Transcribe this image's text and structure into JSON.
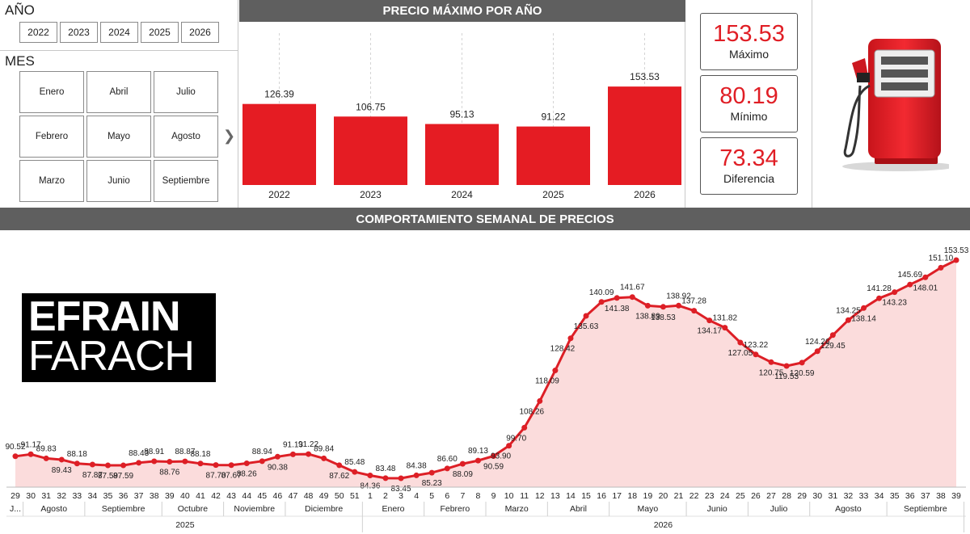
{
  "filters": {
    "year_title": "AÑO",
    "years": [
      "2022",
      "2023",
      "2024",
      "2025",
      "2026"
    ],
    "month_title": "MES",
    "months": [
      "Enero",
      "Abril",
      "Julio",
      "Febrero",
      "Mayo",
      "Agosto",
      "Marzo",
      "Junio",
      "Septiembre"
    ]
  },
  "kpis": [
    {
      "value": "153.53",
      "label": "Máximo"
    },
    {
      "value": "80.19",
      "label": "Mínimo"
    },
    {
      "value": "73.34",
      "label": "Diferencia"
    }
  ],
  "logo": {
    "line1": "EFRAIN",
    "line2": "FARACH"
  },
  "colors": {
    "accent": "#e51c23",
    "header": "#5f5f5f",
    "area_fill": "#fbdcdc",
    "line": "#dd1f26"
  },
  "chart_data": [
    {
      "type": "bar",
      "title": "PRECIO MÁXIMO POR AÑO",
      "categories": [
        "2022",
        "2023",
        "2024",
        "2025",
        "2026"
      ],
      "values": [
        126.39,
        106.75,
        95.13,
        91.22,
        153.53
      ],
      "labels": [
        "126.39",
        "106.75",
        "95.13",
        "91.22",
        "153.53"
      ],
      "ylim": [
        0,
        160
      ]
    },
    {
      "type": "area",
      "title": "COMPORTAMIENTO SEMANAL DE PRECIOS",
      "weeks": [
        "29",
        "30",
        "31",
        "32",
        "33",
        "34",
        "35",
        "36",
        "37",
        "38",
        "39",
        "40",
        "41",
        "42",
        "43",
        "44",
        "45",
        "46",
        "47",
        "48",
        "49",
        "50",
        "51",
        "1",
        "2",
        "3",
        "4",
        "5",
        "6",
        "7",
        "8",
        "9",
        "10",
        "11",
        "12",
        "13",
        "14",
        "15",
        "16",
        "17",
        "18",
        "19",
        "20",
        "21",
        "22",
        "23",
        "24",
        "25",
        "26",
        "27",
        "28",
        "29",
        "30",
        "31",
        "32",
        "33",
        "34",
        "35",
        "36",
        "37",
        "38",
        "39"
      ],
      "values": [
        90.52,
        91.17,
        89.83,
        89.43,
        88.18,
        87.87,
        87.59,
        87.59,
        88.43,
        88.91,
        88.76,
        88.87,
        88.18,
        87.7,
        87.67,
        88.26,
        88.94,
        90.38,
        91.13,
        91.22,
        89.84,
        87.62,
        85.48,
        84.36,
        83.48,
        83.45,
        84.38,
        85.23,
        86.6,
        88.09,
        89.13,
        90.59,
        93.9,
        99.7,
        108.26,
        118.09,
        128.42,
        135.63,
        140.09,
        141.38,
        141.67,
        138.89,
        138.53,
        138.92,
        137.28,
        134.17,
        131.82,
        127.05,
        123.22,
        120.75,
        119.53,
        120.59,
        124.26,
        129.45,
        134.25,
        138.14,
        141.28,
        143.23,
        145.69,
        148.01,
        151.1,
        153.53
      ],
      "labels": [
        "90.52",
        "91.17",
        "89.83",
        "89.43",
        "88.18",
        "87.87",
        "87.59",
        "87.59",
        "88.43",
        "88.91",
        "88.76",
        "88.87",
        "88.18",
        "87.70",
        "87.67",
        "88.26",
        "88.94",
        "90.38",
        "91.13",
        "91.22",
        "89.84",
        "87.62",
        "85.48",
        "84.36",
        "83.48",
        "83.45",
        "84.38",
        "85.23",
        "86.60",
        "88.09",
        "89.13",
        "90.59",
        "93.90",
        "99.70",
        "108.26",
        "118.09",
        "128.42",
        "135.63",
        "140.09",
        "141.38",
        "141.67",
        "138.89",
        "138.53",
        "138.92",
        "137.28",
        "134.17",
        "131.82",
        "127.05",
        "123.22",
        "120.75",
        "119.53",
        "120.59",
        "124.26",
        "129.45",
        "134.25",
        "138.14",
        "141.28",
        "143.23",
        "145.69",
        "148.01",
        "151.10",
        "153.53"
      ],
      "month_groups": [
        {
          "label": "J...",
          "start": 0,
          "end": 0
        },
        {
          "label": "Agosto",
          "start": 1,
          "end": 4
        },
        {
          "label": "Septiembre",
          "start": 5,
          "end": 9
        },
        {
          "label": "Octubre",
          "start": 10,
          "end": 13
        },
        {
          "label": "Noviembre",
          "start": 14,
          "end": 17
        },
        {
          "label": "Diciembre",
          "start": 18,
          "end": 22
        },
        {
          "label": "Enero",
          "start": 23,
          "end": 26
        },
        {
          "label": "Febrero",
          "start": 27,
          "end": 30
        },
        {
          "label": "Marzo",
          "start": 31,
          "end": 34
        },
        {
          "label": "Abril",
          "start": 35,
          "end": 38
        },
        {
          "label": "Mayo",
          "start": 39,
          "end": 43
        },
        {
          "label": "Junio",
          "start": 44,
          "end": 47
        },
        {
          "label": "Julio",
          "start": 48,
          "end": 51
        },
        {
          "label": "Agosto",
          "start": 52,
          "end": 56
        },
        {
          "label": "Septiembre",
          "start": 57,
          "end": 61
        }
      ],
      "year_groups": [
        {
          "label": "2025",
          "start": 0,
          "end": 22
        },
        {
          "label": "2026",
          "start": 23,
          "end": 61
        }
      ]
    }
  ]
}
